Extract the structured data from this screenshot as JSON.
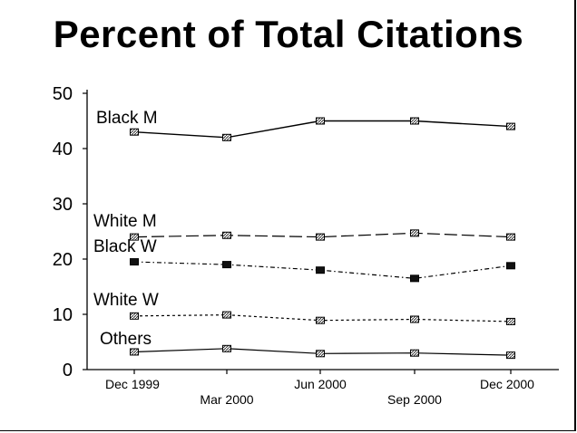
{
  "chart_data": {
    "type": "line",
    "title": "Percent of Total Citations",
    "xlabel": "",
    "ylabel": "",
    "categories": [
      "Dec 1999",
      "Mar 2000",
      "Jun 2000",
      "Sep 2000",
      "Dec 2000"
    ],
    "ylim": [
      0,
      50
    ],
    "yticks": [
      0,
      10,
      20,
      30,
      40,
      50
    ],
    "grid": false,
    "legend": "inline labels",
    "series": [
      {
        "name": "Black M",
        "values": [
          43,
          42,
          45,
          45,
          44
        ],
        "style": "solid",
        "marker": "hatched-square"
      },
      {
        "name": "White M",
        "values": [
          24,
          24.3,
          24,
          24.7,
          24
        ],
        "style": "long-dash",
        "marker": "hatched-square"
      },
      {
        "name": "Black W",
        "values": [
          19.5,
          19,
          18,
          16.5,
          18.8
        ],
        "style": "dash-dot",
        "marker": "filled-square"
      },
      {
        "name": "White W",
        "values": [
          9.7,
          9.9,
          8.9,
          9.1,
          8.7
        ],
        "style": "dotted",
        "marker": "hatched-square"
      },
      {
        "name": "Others",
        "values": [
          3.2,
          3.8,
          2.9,
          3.0,
          2.6
        ],
        "style": "solid",
        "marker": "hatched-square"
      }
    ]
  }
}
